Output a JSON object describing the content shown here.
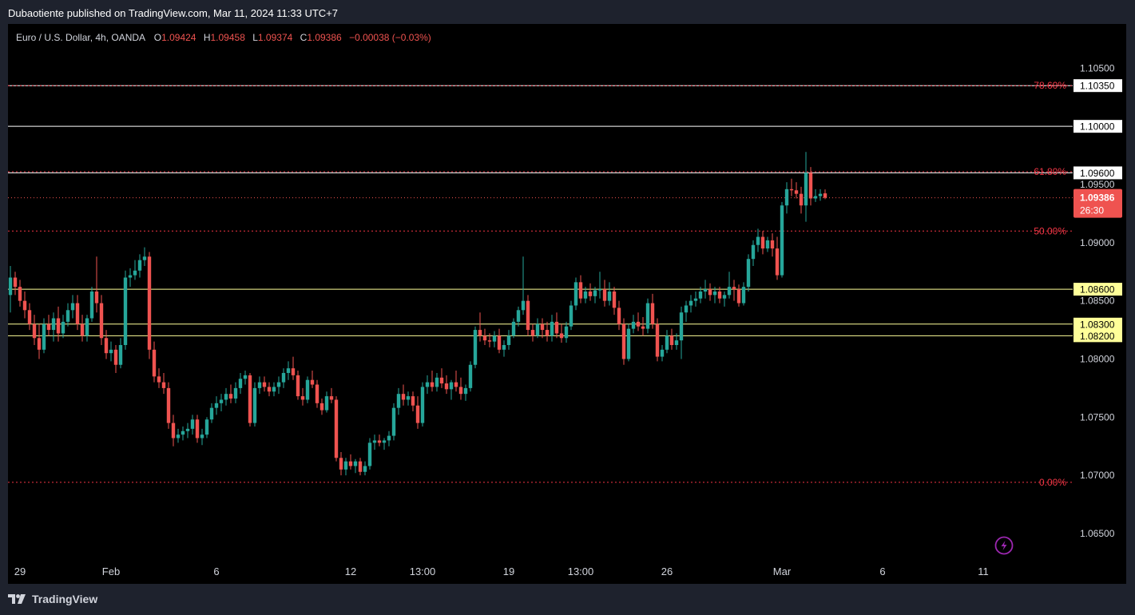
{
  "header": {
    "published": "Dubaotiente published on TradingView.com, Mar 11, 2024 11:33 UTC+7"
  },
  "legend": {
    "symbol": "Euro / U.S. Dollar, 4h, OANDA",
    "o_label": "O",
    "o_value": "1.09424",
    "h_label": "H",
    "h_value": "1.09458",
    "l_label": "L",
    "l_value": "1.09374",
    "c_label": "C",
    "c_value": "1.09386",
    "change": "−0.00038 (−0.03%)"
  },
  "footer": {
    "brand": "TradingView",
    "logo_icon": "tradingview-logo-icon"
  },
  "colors": {
    "up": "#26a69a",
    "down": "#ef5350",
    "fib": "#f23645",
    "level_white": "#ffffff",
    "level_yellow": "#ffff99"
  },
  "chart_data": {
    "type": "candlestick",
    "symbol": "EURUSD",
    "timeframe": "4h",
    "ylim": [
      1.0628,
      1.1088
    ],
    "y_ticks": [
      "1.10500",
      "1.10000",
      "1.09500",
      "1.09000",
      "1.08500",
      "1.08000",
      "1.07500",
      "1.07000",
      "1.06500"
    ],
    "x_ticks": [
      {
        "label": "29",
        "index": 2
      },
      {
        "label": "Feb",
        "index": 21
      },
      {
        "label": "6",
        "index": 43
      },
      {
        "label": "12",
        "index": 71
      },
      {
        "label": "13:00",
        "index": 86
      },
      {
        "label": "19",
        "index": 104
      },
      {
        "label": "13:00",
        "index": 119
      },
      {
        "label": "26",
        "index": 137
      },
      {
        "label": "Mar",
        "index": 161
      },
      {
        "label": "6",
        "index": 182
      },
      {
        "label": "11",
        "index": 203
      }
    ],
    "levels": [
      {
        "value": 1.1035,
        "label": "1.10350",
        "color": "#ffffff"
      },
      {
        "value": 1.1,
        "label": "1.10000",
        "color": "#ffffff"
      },
      {
        "value": 1.096,
        "label": "1.09600",
        "color": "#ffffff"
      },
      {
        "value": 1.086,
        "label": "1.08600",
        "color": "#ffff99"
      },
      {
        "value": 1.083,
        "label": "1.08300",
        "color": "#ffff99"
      },
      {
        "value": 1.082,
        "label": "1.08200",
        "color": "#ffff99"
      }
    ],
    "fib_levels": [
      {
        "value": 1.1035,
        "label": "78.60%"
      },
      {
        "value": 1.0961,
        "label": "61.80%"
      },
      {
        "value": 1.091,
        "label": "50.00%"
      },
      {
        "value": 1.0694,
        "label": "0.00%"
      }
    ],
    "last_price": {
      "value": 1.09386,
      "label": "1.09386",
      "countdown": "26:30"
    },
    "candles_ohlc": [
      [
        1.0855,
        1.088,
        1.084,
        1.087
      ],
      [
        1.087,
        1.0875,
        1.0855,
        1.0862
      ],
      [
        1.0862,
        1.0868,
        1.0845,
        1.085
      ],
      [
        1.085,
        1.0858,
        1.0835,
        1.0842
      ],
      [
        1.0842,
        1.0848,
        1.0825,
        1.083
      ],
      [
        1.083,
        1.0838,
        1.0812,
        1.0818
      ],
      [
        1.0818,
        1.083,
        1.08,
        1.0808
      ],
      [
        1.0808,
        1.0835,
        1.0805,
        1.083
      ],
      [
        1.083,
        1.0838,
        1.082,
        1.0825
      ],
      [
        1.0825,
        1.084,
        1.0815,
        1.0835
      ],
      [
        1.0835,
        1.0845,
        1.0815,
        1.0822
      ],
      [
        1.0822,
        1.0838,
        1.0818,
        1.0832
      ],
      [
        1.0832,
        1.0848,
        1.0828,
        1.0842
      ],
      [
        1.0842,
        1.0855,
        1.0835,
        1.0848
      ],
      [
        1.0848,
        1.0855,
        1.0825,
        1.083
      ],
      [
        1.083,
        1.0838,
        1.0815,
        1.082
      ],
      [
        1.082,
        1.0838,
        1.0815,
        1.0835
      ],
      [
        1.0835,
        1.0862,
        1.0832,
        1.0858
      ],
      [
        1.0858,
        1.0888,
        1.084,
        1.0848
      ],
      [
        1.0848,
        1.0855,
        1.0812,
        1.0818
      ],
      [
        1.0818,
        1.0825,
        1.08,
        1.0805
      ],
      [
        1.0805,
        1.0815,
        1.0798,
        1.0808
      ],
      [
        1.0808,
        1.0812,
        1.0788,
        1.0795
      ],
      [
        1.0795,
        1.0818,
        1.0792,
        1.0812
      ],
      [
        1.0812,
        1.0876,
        1.0808,
        1.087
      ],
      [
        1.087,
        1.0878,
        1.0862,
        1.0872
      ],
      [
        1.0872,
        1.0885,
        1.0868,
        1.0876
      ],
      [
        1.0876,
        1.089,
        1.087,
        1.0885
      ],
      [
        1.0885,
        1.0896,
        1.088,
        1.0888
      ],
      [
        1.0888,
        1.0892,
        1.08,
        1.0808
      ],
      [
        1.0808,
        1.0815,
        1.078,
        1.0785
      ],
      [
        1.0785,
        1.0792,
        1.0775,
        1.078
      ],
      [
        1.078,
        1.0788,
        1.077,
        1.0775
      ],
      [
        1.0775,
        1.078,
        1.074,
        1.0745
      ],
      [
        1.0745,
        1.0752,
        1.0725,
        1.0732
      ],
      [
        1.0732,
        1.074,
        1.0728,
        1.0735
      ],
      [
        1.0735,
        1.0742,
        1.073,
        1.0738
      ],
      [
        1.0738,
        1.0745,
        1.0732,
        1.074
      ],
      [
        1.074,
        1.0752,
        1.0735,
        1.0748
      ],
      [
        1.0748,
        1.0752,
        1.0728,
        1.0732
      ],
      [
        1.0732,
        1.074,
        1.0726,
        1.0735
      ],
      [
        1.0735,
        1.075,
        1.0732,
        1.0748
      ],
      [
        1.0748,
        1.0762,
        1.0745,
        1.0758
      ],
      [
        1.0758,
        1.0768,
        1.0752,
        1.0762
      ],
      [
        1.0762,
        1.077,
        1.0755,
        1.0765
      ],
      [
        1.0765,
        1.0775,
        1.076,
        1.077
      ],
      [
        1.077,
        1.0778,
        1.0762,
        1.0766
      ],
      [
        1.0766,
        1.078,
        1.0762,
        1.0775
      ],
      [
        1.0775,
        1.0788,
        1.077,
        1.0783
      ],
      [
        1.0783,
        1.079,
        1.0778,
        1.0786
      ],
      [
        1.0786,
        1.0788,
        1.0742,
        1.0745
      ],
      [
        1.0745,
        1.078,
        1.0742,
        1.0775
      ],
      [
        1.0775,
        1.0785,
        1.077,
        1.078
      ],
      [
        1.078,
        1.0785,
        1.0772,
        1.0776
      ],
      [
        1.0776,
        1.078,
        1.0768,
        1.0772
      ],
      [
        1.0772,
        1.078,
        1.0768,
        1.0776
      ],
      [
        1.0776,
        1.0785,
        1.077,
        1.078
      ],
      [
        1.078,
        1.0792,
        1.0775,
        1.0788
      ],
      [
        1.0788,
        1.0798,
        1.0782,
        1.0792
      ],
      [
        1.0792,
        1.0802,
        1.0782,
        1.0786
      ],
      [
        1.0786,
        1.079,
        1.0765,
        1.0768
      ],
      [
        1.0768,
        1.0775,
        1.076,
        1.0765
      ],
      [
        1.0765,
        1.0785,
        1.0762,
        1.0782
      ],
      [
        1.0782,
        1.079,
        1.0775,
        1.0778
      ],
      [
        1.0778,
        1.0782,
        1.0758,
        1.0762
      ],
      [
        1.0762,
        1.0766,
        1.0752,
        1.0756
      ],
      [
        1.0756,
        1.0772,
        1.0754,
        1.0768
      ],
      [
        1.0768,
        1.0775,
        1.0762,
        1.0765
      ],
      [
        1.0765,
        1.0768,
        1.0712,
        1.0715
      ],
      [
        1.0715,
        1.072,
        1.07,
        1.0705
      ],
      [
        1.0705,
        1.0715,
        1.07,
        1.0712
      ],
      [
        1.0712,
        1.0718,
        1.0705,
        1.0708
      ],
      [
        1.0708,
        1.0714,
        1.0702,
        1.0712
      ],
      [
        1.0712,
        1.0715,
        1.07,
        1.0703
      ],
      [
        1.0703,
        1.0712,
        1.07,
        1.0708
      ],
      [
        1.0708,
        1.0732,
        1.0705,
        1.0728
      ],
      [
        1.0728,
        1.0735,
        1.0722,
        1.073
      ],
      [
        1.073,
        1.0735,
        1.0725,
        1.0728
      ],
      [
        1.0728,
        1.0732,
        1.0722,
        1.073
      ],
      [
        1.073,
        1.0738,
        1.0725,
        1.0734
      ],
      [
        1.0734,
        1.0762,
        1.073,
        1.0758
      ],
      [
        1.0758,
        1.0775,
        1.0752,
        1.077
      ],
      [
        1.077,
        1.0778,
        1.076,
        1.0765
      ],
      [
        1.0765,
        1.0772,
        1.076,
        1.0768
      ],
      [
        1.0768,
        1.0772,
        1.0755,
        1.076
      ],
      [
        1.076,
        1.0768,
        1.074,
        1.0745
      ],
      [
        1.0745,
        1.078,
        1.0742,
        1.0776
      ],
      [
        1.0776,
        1.0786,
        1.077,
        1.078
      ],
      [
        1.078,
        1.079,
        1.0772,
        1.0776
      ],
      [
        1.0776,
        1.0788,
        1.0772,
        1.0784
      ],
      [
        1.0784,
        1.0792,
        1.0775,
        1.0779
      ],
      [
        1.0779,
        1.0786,
        1.077,
        1.0774
      ],
      [
        1.0774,
        1.0782,
        1.0765,
        1.078
      ],
      [
        1.078,
        1.079,
        1.0772,
        1.0776
      ],
      [
        1.0776,
        1.0784,
        1.0765,
        1.077
      ],
      [
        1.077,
        1.0778,
        1.0764,
        1.0775
      ],
      [
        1.0775,
        1.0798,
        1.0772,
        1.0795
      ],
      [
        1.0795,
        1.0828,
        1.0792,
        1.0825
      ],
      [
        1.0825,
        1.084,
        1.0815,
        1.082
      ],
      [
        1.082,
        1.0826,
        1.0812,
        1.0816
      ],
      [
        1.0816,
        1.0822,
        1.081,
        1.0815
      ],
      [
        1.0815,
        1.0824,
        1.081,
        1.082
      ],
      [
        1.082,
        1.0826,
        1.0805,
        1.0808
      ],
      [
        1.0808,
        1.0816,
        1.0802,
        1.0812
      ],
      [
        1.0812,
        1.0825,
        1.0808,
        1.082
      ],
      [
        1.082,
        1.0835,
        1.0818,
        1.0832
      ],
      [
        1.0832,
        1.0845,
        1.0828,
        1.0842
      ],
      [
        1.0842,
        1.0888,
        1.0838,
        1.085
      ],
      [
        1.085,
        1.0855,
        1.082,
        1.0825
      ],
      [
        1.0825,
        1.083,
        1.0815,
        1.082
      ],
      [
        1.082,
        1.0835,
        1.0818,
        1.083
      ],
      [
        1.083,
        1.0835,
        1.0818,
        1.0825
      ],
      [
        1.0825,
        1.0832,
        1.0815,
        1.082
      ],
      [
        1.082,
        1.0838,
        1.0815,
        1.0832
      ],
      [
        1.0832,
        1.084,
        1.0818,
        1.0822
      ],
      [
        1.0822,
        1.083,
        1.0814,
        1.0818
      ],
      [
        1.0818,
        1.0832,
        1.0814,
        1.0828
      ],
      [
        1.0828,
        1.085,
        1.0825,
        1.0846
      ],
      [
        1.0846,
        1.087,
        1.0842,
        1.0866
      ],
      [
        1.0866,
        1.0872,
        1.0848,
        1.0852
      ],
      [
        1.0852,
        1.0862,
        1.0848,
        1.0858
      ],
      [
        1.0858,
        1.0865,
        1.085,
        1.0854
      ],
      [
        1.0854,
        1.0862,
        1.0848,
        1.0859
      ],
      [
        1.0859,
        1.0875,
        1.0852,
        1.086
      ],
      [
        1.086,
        1.0868,
        1.0845,
        1.085
      ],
      [
        1.085,
        1.0866,
        1.0846,
        1.0858
      ],
      [
        1.0858,
        1.0862,
        1.0838,
        1.0844
      ],
      [
        1.0844,
        1.085,
        1.0825,
        1.083
      ],
      [
        1.083,
        1.0835,
        1.0795,
        1.08
      ],
      [
        1.08,
        1.083,
        1.0798,
        1.0826
      ],
      [
        1.0826,
        1.0838,
        1.0822,
        1.0832
      ],
      [
        1.0832,
        1.084,
        1.0824,
        1.0828
      ],
      [
        1.0828,
        1.0836,
        1.082,
        1.0826
      ],
      [
        1.0826,
        1.0852,
        1.0822,
        1.0848
      ],
      [
        1.0848,
        1.0856,
        1.0826,
        1.083
      ],
      [
        1.083,
        1.0835,
        1.0798,
        1.0802
      ],
      [
        1.0802,
        1.0812,
        1.0798,
        1.0808
      ],
      [
        1.0808,
        1.0825,
        1.0805,
        1.082
      ],
      [
        1.082,
        1.0826,
        1.0808,
        1.0812
      ],
      [
        1.0812,
        1.0822,
        1.0808,
        1.0816
      ],
      [
        1.0816,
        1.0845,
        1.08,
        1.084
      ],
      [
        1.084,
        1.085,
        1.0832,
        1.0846
      ],
      [
        1.0846,
        1.0855,
        1.084,
        1.085
      ],
      [
        1.085,
        1.0858,
        1.0845,
        1.0852
      ],
      [
        1.0852,
        1.0862,
        1.0848,
        1.0858
      ],
      [
        1.0858,
        1.0868,
        1.0852,
        1.086
      ],
      [
        1.086,
        1.0865,
        1.085,
        1.0855
      ],
      [
        1.0855,
        1.0862,
        1.0848,
        1.0858
      ],
      [
        1.0858,
        1.0862,
        1.0848,
        1.0852
      ],
      [
        1.0852,
        1.0858,
        1.0845,
        1.0855
      ],
      [
        1.0855,
        1.0875,
        1.0852,
        1.0862
      ],
      [
        1.0862,
        1.0868,
        1.085,
        1.086
      ],
      [
        1.086,
        1.0864,
        1.0845,
        1.0848
      ],
      [
        1.0848,
        1.0866,
        1.0846,
        1.0862
      ],
      [
        1.0862,
        1.089,
        1.0858,
        1.0886
      ],
      [
        1.0886,
        1.0902,
        1.088,
        1.0898
      ],
      [
        1.0898,
        1.0912,
        1.0892,
        1.0905
      ],
      [
        1.0905,
        1.091,
        1.089,
        1.0895
      ],
      [
        1.0895,
        1.0905,
        1.0892,
        1.0902
      ],
      [
        1.0902,
        1.0908,
        1.0888,
        1.0895
      ],
      [
        1.0895,
        1.0905,
        1.0868,
        1.0872
      ],
      [
        1.0872,
        1.0935,
        1.087,
        1.0932
      ],
      [
        1.0932,
        1.0952,
        1.0925,
        1.0946
      ],
      [
        1.0946,
        1.0955,
        1.094,
        1.0945
      ],
      [
        1.0945,
        1.0952,
        1.0938,
        1.0942
      ],
      [
        1.0942,
        1.0948,
        1.0925,
        1.0932
      ],
      [
        1.0932,
        1.0978,
        1.0918,
        1.096
      ],
      [
        1.096,
        1.0965,
        1.0932,
        1.0938
      ],
      [
        1.0938,
        1.0946,
        1.0935,
        1.094
      ],
      [
        1.094,
        1.0946,
        1.0936,
        1.0942
      ],
      [
        1.09424,
        1.09458,
        1.09374,
        1.09386
      ]
    ]
  }
}
